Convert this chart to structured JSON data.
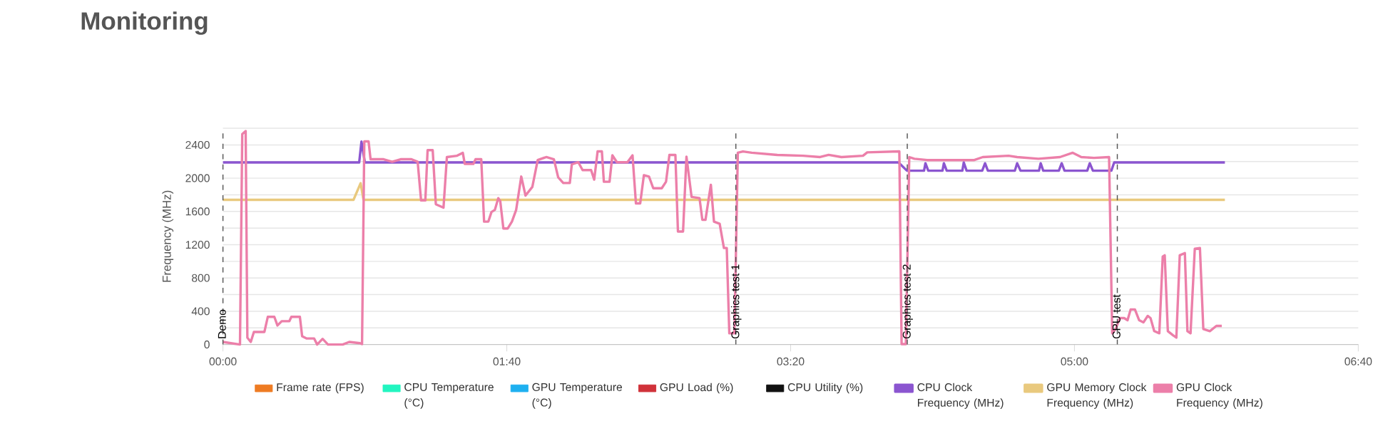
{
  "chart_data": {
    "type": "line",
    "title": "Monitoring",
    "ylabel": "Frequency (MHz)",
    "xlim": [
      0,
      400
    ],
    "xticks": [
      {
        "value": 0,
        "label": "00:00"
      },
      {
        "value": 100,
        "label": "01:40"
      },
      {
        "value": 200,
        "label": "03:20"
      },
      {
        "value": 300,
        "label": "05:00"
      },
      {
        "value": 400,
        "label": "06:40"
      }
    ],
    "ylim": [
      0,
      2600
    ],
    "yticks": [
      0,
      {
        "value": 200,
        "label": null
      },
      400,
      {
        "value": 600,
        "label": null
      },
      800,
      {
        "value": 1000,
        "label": null
      },
      1200,
      {
        "value": 1400,
        "label": null
      },
      1600,
      {
        "value": 1800,
        "label": null
      },
      2000,
      {
        "value": 2200,
        "label": null
      },
      2400,
      {
        "value": 2600,
        "label": null
      }
    ],
    "grid": "y",
    "legend": "bottom",
    "ref_lines": [
      {
        "axis": "x",
        "value": 0,
        "label": "Demo",
        "color": "#555555",
        "line_style": "dashed"
      },
      {
        "axis": "x",
        "value": 180.7,
        "label": "Graphics test 1",
        "color": "#555555",
        "line_style": "dashed"
      },
      {
        "axis": "x",
        "value": 241.1,
        "label": "Graphics test 2",
        "color": "#555555",
        "line_style": "dashed"
      },
      {
        "axis": "x",
        "value": 315.1,
        "label": "CPU test",
        "color": "#555555",
        "line_style": "dashed"
      }
    ],
    "series": [
      {
        "name": "Frame rate (FPS)",
        "color": "#ee7b22"
      },
      {
        "name": "CPU Temperature (°C)",
        "color": "#22f5c0"
      },
      {
        "name": "GPU Temperature (°C)",
        "color": "#1eb0f0"
      },
      {
        "name": "GPU Load (%)",
        "color": "#d0323a"
      },
      {
        "name": "CPU Utility (%)",
        "color": "#111111"
      },
      {
        "name": "CPU Clock Frequency (MHz)",
        "color": "#8b55d0",
        "x": [
          0,
          48,
          48.8,
          50,
          238,
          241,
          247,
          247.5,
          248.5,
          253.5,
          254,
          255,
          260.5,
          261,
          262,
          267.5,
          268.5,
          269.5,
          279,
          279.8,
          281,
          287.5,
          288.1,
          289,
          294.5,
          295.5,
          296.5,
          304.5,
          305.4,
          306.5,
          313,
          314,
          353
        ],
        "values": [
          2190,
          2190,
          2440,
          2190,
          2190,
          2090,
          2090,
          2180,
          2090,
          2090,
          2180,
          2090,
          2090,
          2190,
          2090,
          2090,
          2180,
          2090,
          2090,
          2180,
          2090,
          2090,
          2180,
          2090,
          2090,
          2180,
          2090,
          2090,
          2180,
          2090,
          2090,
          2190,
          2190
        ]
      },
      {
        "name": "GPU Memory Clock Frequency (MHz)",
        "color": "#e9c97e",
        "x": [
          0,
          46,
          48.5,
          49.5,
          353
        ],
        "values": [
          1740,
          1740,
          1940,
          1740,
          1740
        ]
      },
      {
        "name": "GPU Clock Frequency (MHz)",
        "color": "#ec7fa9",
        "x": [
          0,
          6,
          6.8,
          8,
          8.6,
          9.8,
          10.9,
          14.6,
          15.8,
          18.1,
          19.2,
          20.7,
          23.4,
          24.1,
          27.1,
          27.9,
          29.4,
          32.1,
          33.2,
          35.1,
          37,
          42.2,
          44.5,
          48.3,
          49,
          49.8,
          51.3,
          52,
          56.6,
          59.6,
          62.6,
          66.4,
          68.6,
          69.8,
          71.3,
          72.1,
          73.9,
          75,
          77.7,
          78.9,
          82.5,
          84.5,
          85.2,
          88.2,
          89,
          91,
          92,
          93.5,
          94.6,
          95.8,
          97,
          97.7,
          98.8,
          100.3,
          101.8,
          103.3,
          105.1,
          106.6,
          109,
          110.9,
          113.9,
          116.6,
          118.1,
          119.9,
          122.2,
          122.9,
          125.2,
          126.7,
          129.7,
          130.8,
          132,
          133.5,
          134.2,
          136.2,
          137.2,
          138.8,
          142.5,
          144.3,
          145.5,
          147,
          148.3,
          150.1,
          151.6,
          154.6,
          156.1,
          157.3,
          159.4,
          160.3,
          162.1,
          163.3,
          165.1,
          167.9,
          168.9,
          170,
          171.9,
          173,
          175,
          176.5,
          177.5,
          178.4,
          180.2,
          181.4,
          183.2,
          186.3,
          195.3,
          204.4,
          210.4,
          213.4,
          217.9,
          225.5,
          227,
          238.3,
          239.1,
          240.6,
          241.8,
          243.6,
          248.1,
          264.7,
          267.7,
          276.8,
          279.8,
          287.3,
          294.9,
          299.4,
          302.4,
          306.9,
          312.2,
          313.3,
          314.5,
          316,
          317.5,
          318.7,
          319.8,
          321.3,
          322.8,
          324.3,
          325.8,
          326.8,
          328.1,
          329.9,
          331.1,
          331.8,
          332.9,
          334.8,
          335.9,
          337.1,
          338.9,
          339.8,
          340.9,
          342.4,
          344.2,
          345.4,
          347.7,
          350,
          351.9
        ],
        "values": [
          31,
          0,
          2530,
          2567,
          83,
          31,
          151,
          151,
          333,
          333,
          229,
          281,
          281,
          333,
          333,
          99,
          73,
          73,
          0,
          68,
          0,
          0,
          31,
          16,
          5,
          2442,
          2442,
          2228,
          2228,
          2197,
          2228,
          2228,
          2197,
          1733,
          1733,
          2337,
          2337,
          1687,
          1645,
          2254,
          2270,
          2306,
          2171,
          2171,
          2228,
          2228,
          1478,
          1478,
          1593,
          1619,
          1760,
          1723,
          1395,
          1395,
          1478,
          1619,
          2020,
          1791,
          1895,
          2218,
          2254,
          2228,
          2010,
          1942,
          1942,
          2166,
          2192,
          2098,
          2098,
          1983,
          2322,
          2322,
          1957,
          1957,
          2275,
          2192,
          2192,
          2275,
          1697,
          1697,
          2036,
          2020,
          1879,
          1879,
          1957,
          2280,
          2280,
          1359,
          1359,
          2259,
          1775,
          1760,
          1499,
          1499,
          1921,
          1478,
          1452,
          1161,
          1161,
          135,
          135,
          2306,
          2322,
          2306,
          2280,
          2270,
          2254,
          2280,
          2254,
          2270,
          2311,
          2322,
          5,
          5,
          2254,
          2233,
          2218,
          2218,
          2254,
          2270,
          2254,
          2233,
          2254,
          2306,
          2254,
          2244,
          2254,
          135,
          187,
          318,
          318,
          292,
          422,
          422,
          292,
          266,
          344,
          318,
          161,
          135,
          1057,
          1073,
          161,
          109,
          83,
          1073,
          1099,
          161,
          135,
          1151,
          1161,
          187,
          161,
          224,
          224
        ]
      }
    ]
  }
}
